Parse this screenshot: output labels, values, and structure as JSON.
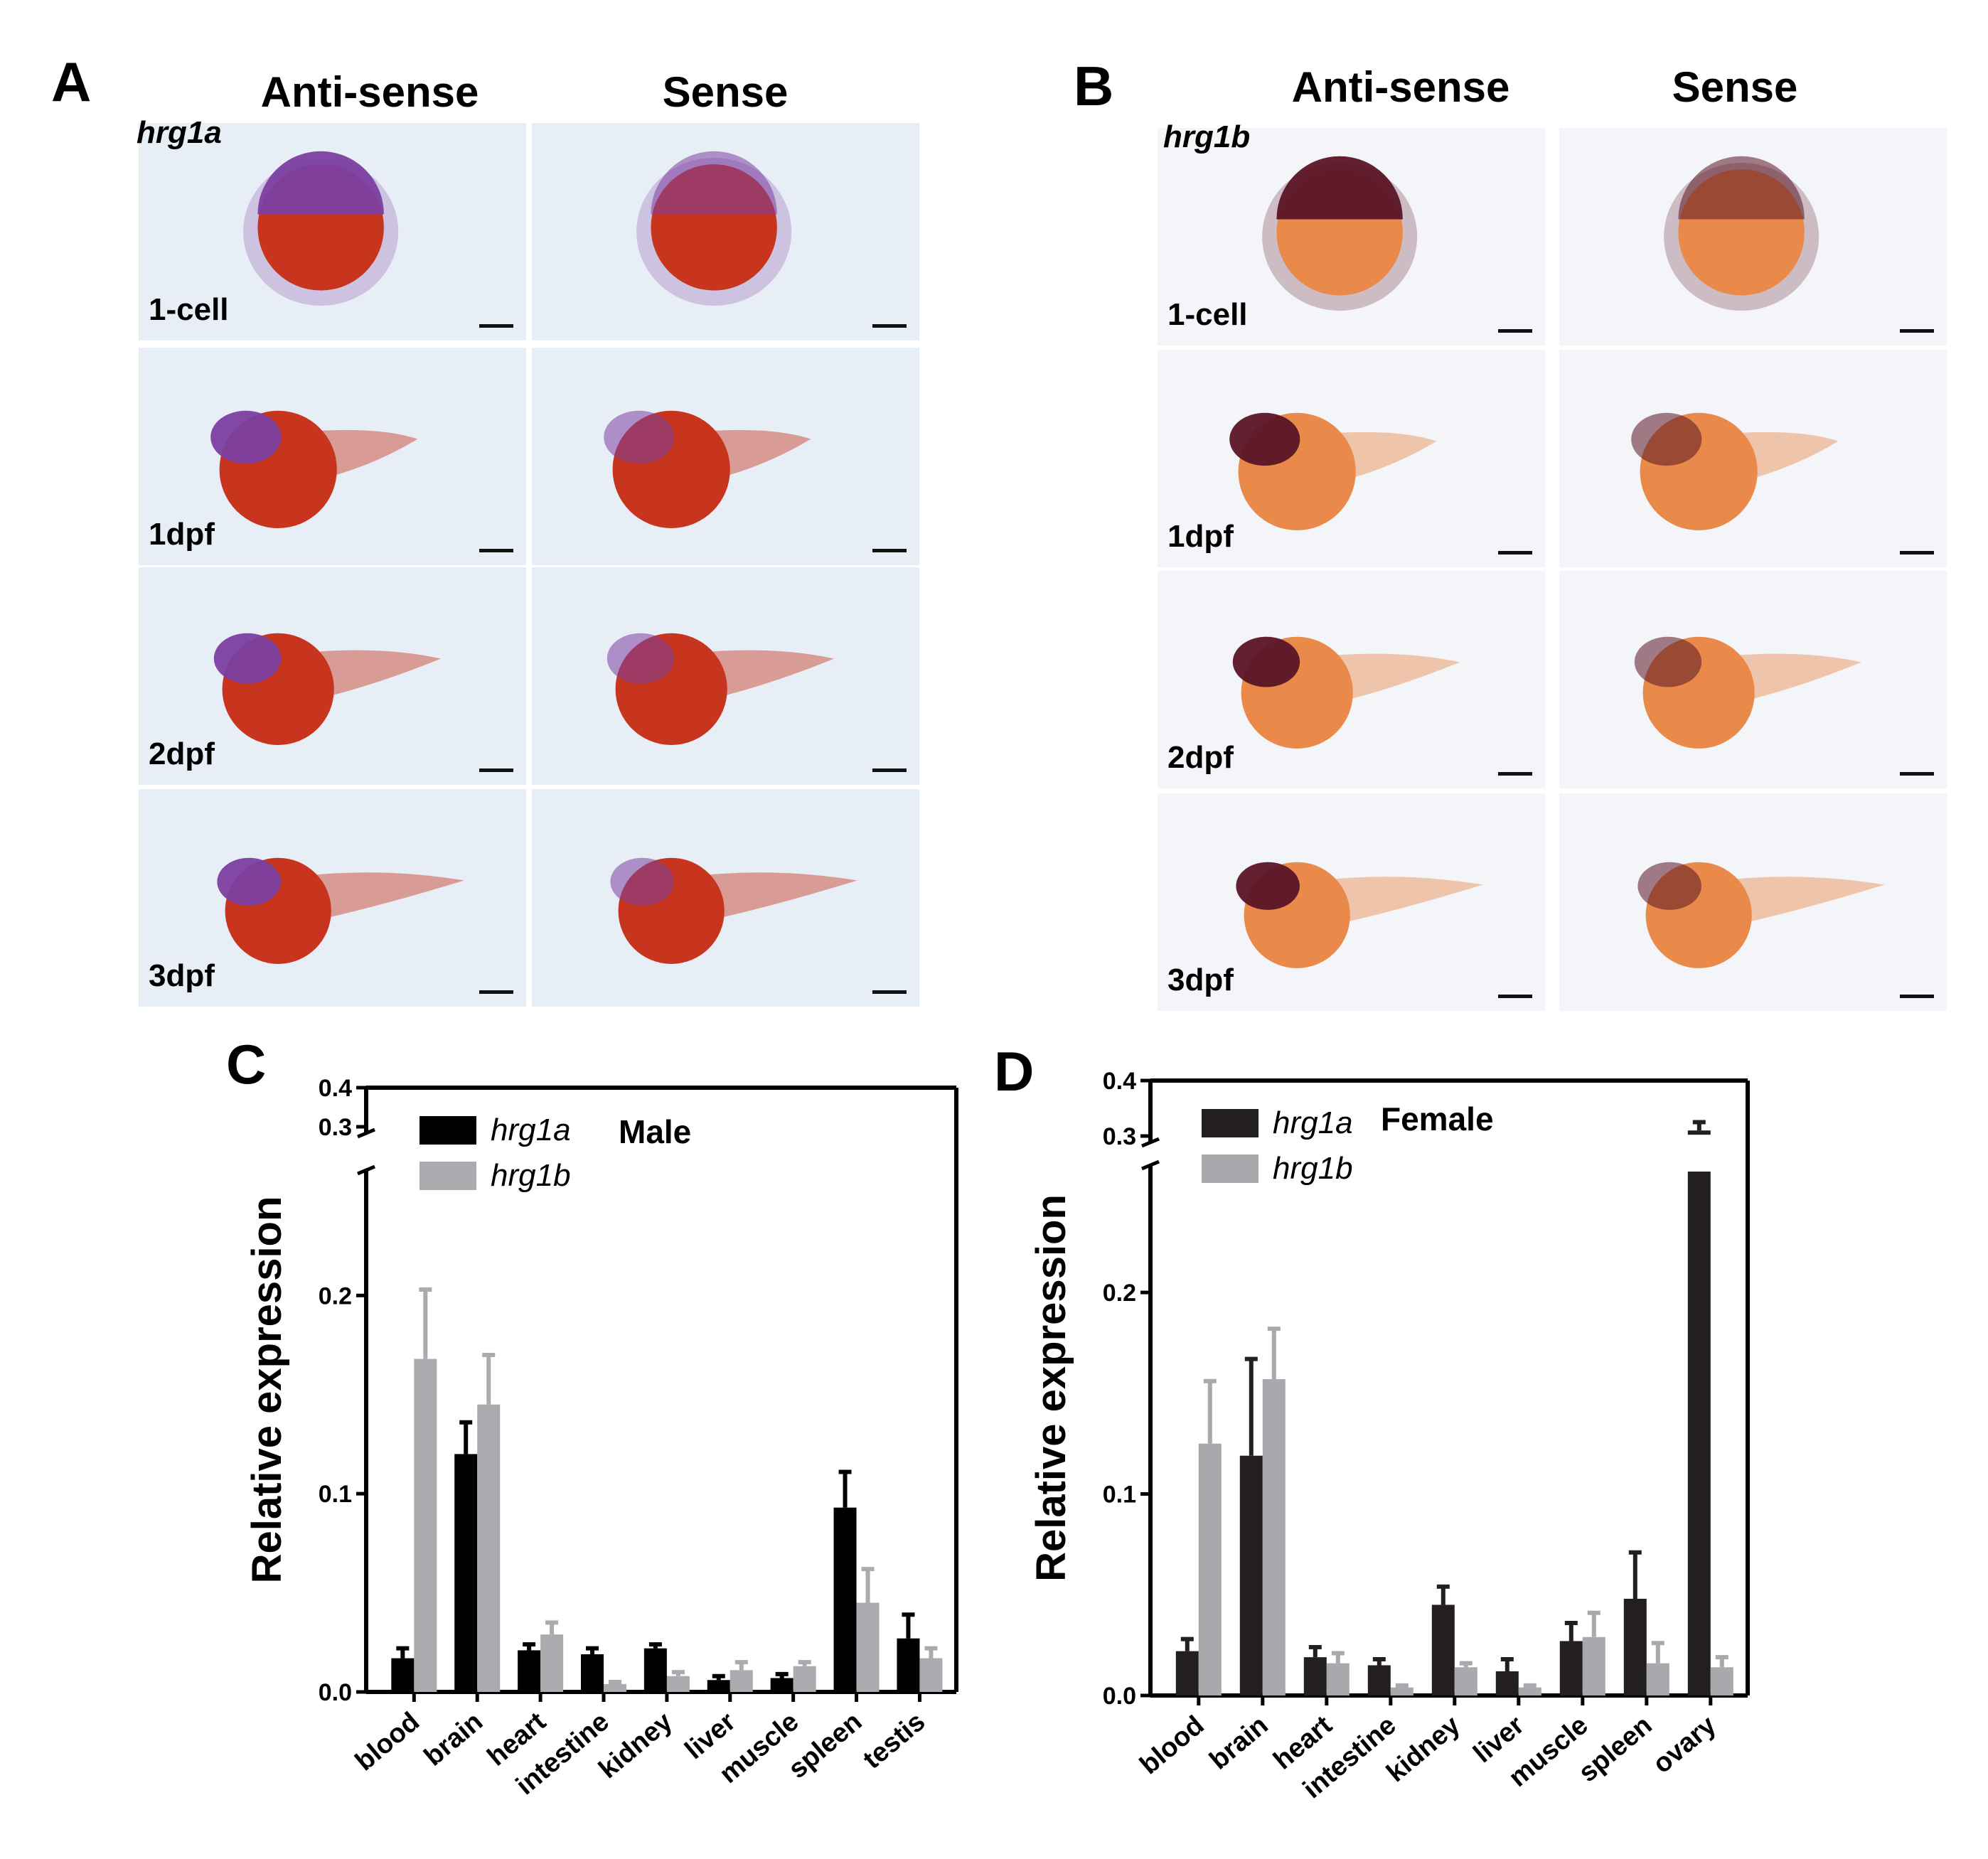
{
  "panel_a": {
    "letter": "A",
    "antisense_header": "Anti-sense",
    "sense_header": "Sense",
    "gene": "hrg1a",
    "stages": [
      "1-cell",
      "1dpf",
      "2dpf",
      "3dpf"
    ],
    "colors": {
      "background": "#e8eef6",
      "stain": "#7b3fa0",
      "yolk": "#c8351e"
    }
  },
  "panel_b": {
    "letter": "B",
    "antisense_header": "Anti-sense",
    "sense_header": "Sense",
    "gene": "hrg1b",
    "stages": [
      "1-cell",
      "1dpf",
      "2dpf",
      "3dpf"
    ],
    "colors": {
      "background": "#f3f5f9",
      "stain": "#5a1425",
      "yolk": "#e98a4b"
    }
  },
  "chart_data": [
    {
      "panel": "C",
      "type": "bar",
      "title": "Male",
      "ylabel": "Relative expression",
      "xlabel": "",
      "yticks": [
        "0.0",
        "0.1",
        "0.2",
        "0.3",
        "0.4"
      ],
      "ylim": [
        0,
        0.4
      ],
      "y_axis_break": [
        0.26,
        0.3
      ],
      "grid": false,
      "legend_position": "top-left",
      "categories": [
        "blood",
        "brain",
        "heart",
        "intestine",
        "kidney",
        "liver",
        "muscle",
        "spleen",
        "testis"
      ],
      "series": [
        {
          "name": "hrg1a",
          "color": "#000000",
          "values": [
            0.017,
            0.12,
            0.021,
            0.019,
            0.022,
            0.006,
            0.007,
            0.093,
            0.027
          ],
          "errors": [
            0.005,
            0.016,
            0.003,
            0.003,
            0.002,
            0.002,
            0.002,
            0.018,
            0.012
          ]
        },
        {
          "name": "hrg1b",
          "color": "#a9abae",
          "values": [
            0.168,
            0.145,
            0.029,
            0.004,
            0.008,
            0.011,
            0.013,
            0.045,
            0.017
          ],
          "errors": [
            0.035,
            0.025,
            0.006,
            0.001,
            0.002,
            0.004,
            0.002,
            0.017,
            0.005
          ]
        }
      ]
    },
    {
      "panel": "D",
      "type": "bar",
      "title": "Female",
      "ylabel": "Relative expression",
      "xlabel": "",
      "yticks": [
        "0.0",
        "0.1",
        "0.2",
        "0.3",
        "0.4"
      ],
      "ylim": [
        0,
        0.4
      ],
      "y_axis_break": [
        0.26,
        0.3
      ],
      "grid": false,
      "legend_position": "top-left",
      "categories": [
        "blood",
        "brain",
        "heart",
        "intestine",
        "kidney",
        "liver",
        "muscle",
        "spleen",
        "ovary"
      ],
      "series": [
        {
          "name": "hrg1a",
          "color": "#231f20",
          "values": [
            0.022,
            0.119,
            0.019,
            0.015,
            0.045,
            0.012,
            0.027,
            0.048,
            0.31
          ],
          "errors": [
            0.006,
            0.048,
            0.005,
            0.003,
            0.009,
            0.006,
            0.009,
            0.023,
            0.015
          ]
        },
        {
          "name": "hrg1b",
          "color": "#a7a9ac",
          "values": [
            0.125,
            0.157,
            0.016,
            0.004,
            0.014,
            0.004,
            0.029,
            0.016,
            0.014
          ],
          "errors": [
            0.031,
            0.025,
            0.005,
            0.001,
            0.002,
            0.001,
            0.012,
            0.01,
            0.005
          ]
        }
      ]
    }
  ]
}
